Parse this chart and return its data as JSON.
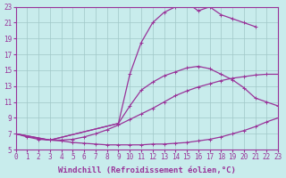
{
  "background_color": "#c8ecec",
  "grid_color": "#a0c8c8",
  "line_color": "#993399",
  "xlabel": "Windchill (Refroidissement éolien,°C)",
  "xlim": [
    0,
    23
  ],
  "ylim": [
    5,
    23
  ],
  "xticks": [
    0,
    1,
    2,
    3,
    4,
    5,
    6,
    7,
    8,
    9,
    10,
    11,
    12,
    13,
    14,
    15,
    16,
    17,
    18,
    19,
    20,
    21,
    22,
    23
  ],
  "yticks": [
    5,
    7,
    9,
    11,
    13,
    15,
    17,
    19,
    21,
    23
  ],
  "curves": [
    {
      "x": [
        0,
        1,
        2,
        3,
        4,
        5,
        6,
        7,
        8,
        9,
        10,
        11,
        12,
        13,
        14,
        15,
        16,
        17,
        18,
        19,
        20,
        21,
        22,
        23
      ],
      "y": [
        7,
        6.6,
        6.3,
        6.2,
        6.1,
        5.9,
        5.8,
        5.7,
        5.6,
        5.6,
        5.6,
        5.6,
        5.7,
        5.7,
        5.8,
        5.9,
        6.1,
        6.3,
        6.6,
        7.0,
        7.4,
        7.9,
        8.5,
        9.0
      ]
    },
    {
      "x": [
        0,
        2,
        3,
        4,
        5,
        6,
        7,
        8,
        9,
        10,
        11,
        12,
        13,
        14,
        15,
        16,
        17,
        18,
        19,
        20,
        21,
        22,
        23
      ],
      "y": [
        7,
        6.4,
        6.2,
        6.2,
        6.3,
        6.6,
        7.0,
        7.5,
        8.1,
        8.8,
        9.5,
        10.2,
        11.0,
        11.8,
        12.4,
        12.9,
        13.3,
        13.7,
        14.0,
        14.2,
        14.4,
        14.5,
        14.5
      ]
    },
    {
      "x": [
        0,
        3,
        9,
        10,
        11,
        12,
        13,
        14,
        15,
        16,
        17,
        18,
        19,
        20,
        21,
        22,
        23
      ],
      "y": [
        7,
        6.2,
        8.3,
        10.5,
        12.5,
        13.5,
        14.3,
        14.8,
        15.3,
        15.5,
        15.2,
        14.5,
        13.8,
        12.8,
        11.5,
        11.0,
        10.5
      ]
    },
    {
      "x": [
        0,
        3,
        9,
        10,
        11,
        12,
        13,
        14,
        15,
        16,
        17,
        18,
        19,
        20,
        21
      ],
      "y": [
        7,
        6.2,
        8.3,
        14.5,
        18.5,
        21.0,
        22.3,
        23.0,
        23.5,
        22.5,
        23.0,
        22.0,
        21.5,
        21.0,
        20.5
      ]
    }
  ],
  "figsize": [
    3.2,
    2.0
  ],
  "dpi": 100,
  "tick_fontsize": 5.5,
  "xlabel_fontsize": 6.5,
  "linewidth": 0.9,
  "markersize": 2.5
}
